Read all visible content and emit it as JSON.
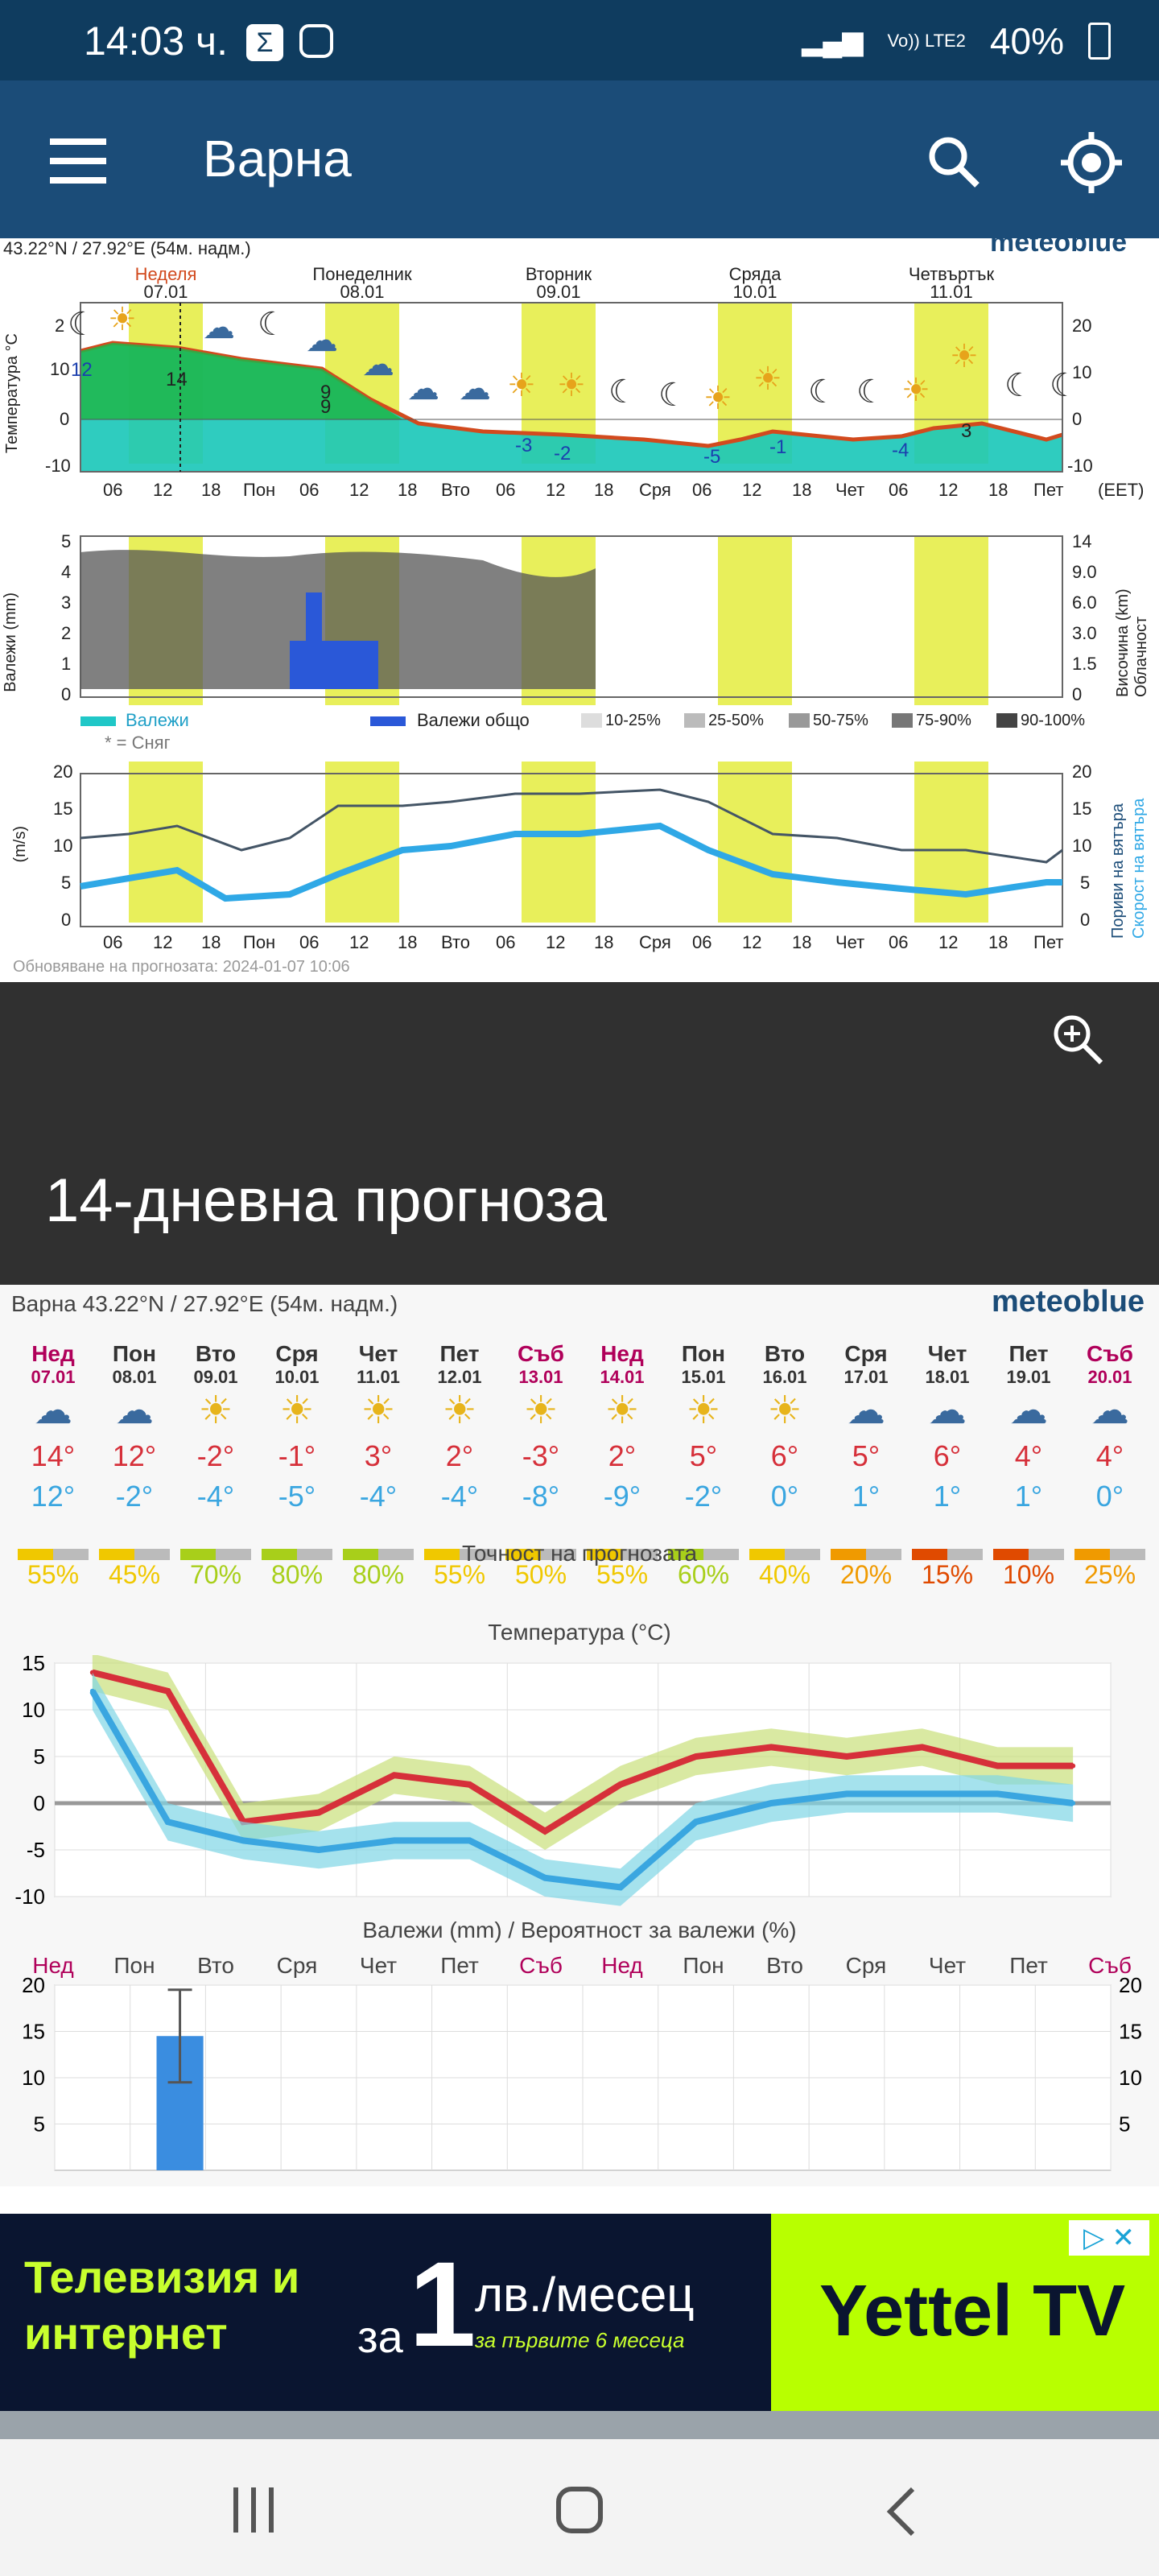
{
  "status": {
    "time": "14:03 ч.",
    "battery": "40%",
    "network": "Vo)) LTE2"
  },
  "appbar": {
    "title": "Варна"
  },
  "meteogram": {
    "coords": "43.22°N / 27.92°E (54м. надм.)",
    "brand": "meteoblue",
    "days": [
      {
        "name": "Неделя",
        "date": "07.01"
      },
      {
        "name": "Понеделник",
        "date": "08.01"
      },
      {
        "name": "Вторник",
        "date": "09.01"
      },
      {
        "name": "Сряда",
        "date": "10.01"
      },
      {
        "name": "Четвъртък",
        "date": "11.01"
      }
    ],
    "x_ticks": [
      "06",
      "12",
      "18",
      "Пон",
      "06",
      "12",
      "18",
      "Вто",
      "06",
      "12",
      "18",
      "Сря",
      "06",
      "12",
      "18",
      "Чет",
      "06",
      "12",
      "18",
      "Пет"
    ],
    "tz": "(EET)",
    "temp_ylabel": "Температура °C",
    "temp_ticks": [
      "20",
      "10",
      "0",
      "-10"
    ],
    "temp_left_ticks": [
      "2",
      "10",
      "0",
      "-10"
    ],
    "temp_labels": [
      "12",
      "14",
      "9",
      "9",
      "-3",
      "-2",
      "-5",
      "-1",
      "-4",
      "3"
    ],
    "precip_ylabel": "Валежи (mm)",
    "precip_ticks": [
      "5",
      "4",
      "3",
      "2",
      "1",
      "0"
    ],
    "cloud_ticks": [
      "14",
      "9.0",
      "6.0",
      "3.0",
      "1.5",
      "0"
    ],
    "cloud_ylabel": "Височина (km) Облачност",
    "legend": {
      "rain": "Валежи",
      "total": "Валежи общо",
      "snow": "* = Сняг",
      "c1": "10-25%",
      "c2": "25-50%",
      "c3": "50-75%",
      "c4": "75-90%",
      "c5": "90-100%"
    },
    "wind_ylabel": "(m/s)",
    "wind_ticks": [
      "20",
      "15",
      "10",
      "5",
      "0"
    ],
    "wind_right_labels": {
      "gusts": "Пориви на вятъра",
      "speed": "Скорост на вятъра"
    },
    "updated": "Обновяване на прогнозата: 2024-01-07 10:06"
  },
  "section": {
    "title": "14-дневна прогноза"
  },
  "fourteen": {
    "location": "Варна  43.22°N / 27.92°E (54м. надм.)",
    "brand": "meteoblue",
    "days": [
      {
        "name": "Нед",
        "date": "07.01",
        "max": "14°",
        "min": "12°",
        "acc": "55%",
        "weekend": true,
        "icon": "cloud-rain-sun-icon"
      },
      {
        "name": "Пон",
        "date": "08.01",
        "max": "12°",
        "min": "-2°",
        "acc": "45%",
        "weekend": false,
        "icon": "cloud-snow-rain-icon"
      },
      {
        "name": "Вто",
        "date": "09.01",
        "max": "-2°",
        "min": "-4°",
        "acc": "70%",
        "weekend": false,
        "icon": "sun-cloud-icon"
      },
      {
        "name": "Сря",
        "date": "10.01",
        "max": "-1°",
        "min": "-5°",
        "acc": "80%",
        "weekend": false,
        "icon": "sun-icon"
      },
      {
        "name": "Чет",
        "date": "11.01",
        "max": "3°",
        "min": "-4°",
        "acc": "80%",
        "weekend": false,
        "icon": "sun-icon"
      },
      {
        "name": "Пет",
        "date": "12.01",
        "max": "2°",
        "min": "-4°",
        "acc": "55%",
        "weekend": false,
        "icon": "sun-cloud-snow-icon"
      },
      {
        "name": "Съб",
        "date": "13.01",
        "max": "-3°",
        "min": "-8°",
        "acc": "50%",
        "weekend": true,
        "icon": "sun-icon"
      },
      {
        "name": "Нед",
        "date": "14.01",
        "max": "2°",
        "min": "-9°",
        "acc": "55%",
        "weekend": true,
        "icon": "sun-icon"
      },
      {
        "name": "Пон",
        "date": "15.01",
        "max": "5°",
        "min": "-2°",
        "acc": "60%",
        "weekend": false,
        "icon": "sun-cloud-icon"
      },
      {
        "name": "Вто",
        "date": "16.01",
        "max": "6°",
        "min": "0°",
        "acc": "40%",
        "weekend": false,
        "icon": "sun-cloud-icon"
      },
      {
        "name": "Сря",
        "date": "17.01",
        "max": "5°",
        "min": "1°",
        "acc": "20%",
        "weekend": false,
        "icon": "cloud-sun-icon"
      },
      {
        "name": "Чет",
        "date": "18.01",
        "max": "6°",
        "min": "1°",
        "acc": "15%",
        "weekend": false,
        "icon": "cloud-icon"
      },
      {
        "name": "Пет",
        "date": "19.01",
        "max": "4°",
        "min": "1°",
        "acc": "10%",
        "weekend": false,
        "icon": "cloud-icon"
      },
      {
        "name": "Съб",
        "date": "20.01",
        "max": "4°",
        "min": "0°",
        "acc": "25%",
        "weekend": true,
        "icon": "cloud-icon"
      }
    ],
    "accuracy_title": "Точност на прогнозата",
    "temp_title": "Температура (°C)",
    "precip_title": "Валежи (mm) / Вероятност за валежи (%)",
    "precip_days": [
      "Нед",
      "Пон",
      "Вто",
      "Сря",
      "Чет",
      "Пет",
      "Съб",
      "Нед",
      "Пон",
      "Вто",
      "Сря",
      "Чет",
      "Пет",
      "Съб"
    ]
  },
  "ad": {
    "line1": "Телевизия и",
    "line2": "интернет",
    "pre": "за",
    "big": "1",
    "price": "лв./месец",
    "sub": "за първите 6 месеца",
    "brand": "Yettel TV"
  },
  "colors": {
    "accent": "#1b4c78",
    "max": "#d6303a",
    "min": "#3aa6e0",
    "yellow": "#e8ef5b"
  },
  "chart_data": [
    {
      "type": "line",
      "title": "Температура (°C)",
      "categories": [
        "Нед",
        "Пон",
        "Вто",
        "Сря",
        "Чет",
        "Пет",
        "Съб",
        "Нед",
        "Пон",
        "Вто",
        "Сря",
        "Чет",
        "Пет",
        "Съб"
      ],
      "series": [
        {
          "name": "max",
          "values": [
            14,
            12,
            -2,
            -1,
            3,
            2,
            -3,
            2,
            5,
            6,
            5,
            6,
            4,
            4
          ]
        },
        {
          "name": "min",
          "values": [
            12,
            -2,
            -4,
            -5,
            -4,
            -4,
            -8,
            -9,
            -2,
            0,
            1,
            1,
            1,
            0
          ]
        }
      ],
      "ylim": [
        -10,
        15
      ]
    },
    {
      "type": "bar",
      "title": "Валежи (mm) / Вероятност за валежи (%)",
      "categories": [
        "Нед",
        "Пон",
        "Вто",
        "Сря",
        "Чет",
        "Пет",
        "Съб",
        "Нед",
        "Пон",
        "Вто",
        "Сря",
        "Чет",
        "Пет",
        "Съб"
      ],
      "values": [
        0,
        14.5,
        0,
        0,
        0,
        0,
        0,
        0,
        0,
        0,
        0,
        0,
        0,
        0
      ],
      "ylim": [
        0,
        20
      ]
    }
  ]
}
